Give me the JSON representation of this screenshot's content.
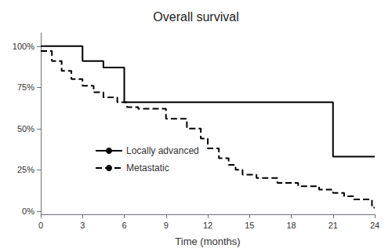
{
  "chart_data": {
    "type": "line",
    "title": "Overall survival",
    "xlabel": "Time (months)",
    "xlim": [
      0,
      24
    ],
    "ylim": [
      -0.02,
      1.08
    ],
    "xticks": [
      0,
      3,
      6,
      9,
      12,
      15,
      18,
      21,
      24
    ],
    "yticks": [
      {
        "value": 0.0,
        "label": "0%"
      },
      {
        "value": 0.25,
        "label": "25%"
      },
      {
        "value": 0.5,
        "label": "50%"
      },
      {
        "value": 0.75,
        "label": "75%"
      },
      {
        "value": 1.0,
        "label": "100%"
      }
    ],
    "grid": false,
    "legend": "left",
    "series": [
      {
        "name": "Locally advanced",
        "color": "#000000",
        "line_style": "solid",
        "x": [
          0,
          3,
          3,
          4.5,
          4.5,
          6,
          6,
          8,
          8,
          21,
          21,
          24
        ],
        "values": [
          1.0,
          1.0,
          0.91,
          0.91,
          0.87,
          0.87,
          0.66,
          0.66,
          0.66,
          0.66,
          0.33,
          0.33
        ]
      },
      {
        "name": "Metastatic",
        "color": "#000000",
        "line_style": "dashed",
        "x": [
          0,
          0.8,
          0.8,
          1.5,
          1.5,
          2.2,
          2.2,
          3.0,
          3.0,
          3.8,
          3.8,
          4.5,
          4.5,
          5.5,
          5.5,
          6.2,
          6.2,
          7.0,
          7.0,
          7.5,
          7.5,
          9.0,
          9.0,
          10.5,
          10.5,
          11.5,
          11.5,
          12.0,
          12.0,
          12.8,
          12.8,
          13.5,
          13.5,
          14.0,
          14.0,
          14.5,
          14.5,
          15.5,
          15.5,
          17.0,
          17.0,
          18.5,
          18.5,
          20.0,
          20.0,
          21.0,
          21.0,
          21.8,
          21.8,
          22.5,
          22.5,
          23.8,
          23.8,
          24
        ],
        "values": [
          0.97,
          0.97,
          0.91,
          0.91,
          0.85,
          0.85,
          0.8,
          0.8,
          0.76,
          0.76,
          0.72,
          0.72,
          0.69,
          0.69,
          0.66,
          0.66,
          0.63,
          0.63,
          0.62,
          0.62,
          0.62,
          0.62,
          0.56,
          0.56,
          0.5,
          0.5,
          0.44,
          0.44,
          0.38,
          0.38,
          0.32,
          0.32,
          0.28,
          0.28,
          0.25,
          0.25,
          0.22,
          0.22,
          0.2,
          0.2,
          0.17,
          0.17,
          0.15,
          0.15,
          0.13,
          0.13,
          0.11,
          0.11,
          0.09,
          0.09,
          0.07,
          0.07,
          0.02,
          0.02
        ]
      }
    ]
  }
}
